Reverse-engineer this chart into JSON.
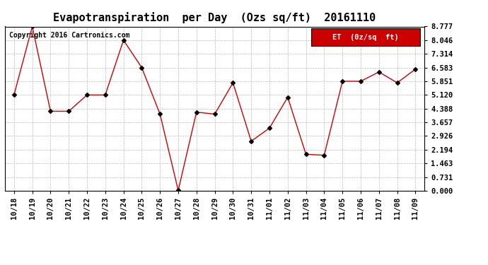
{
  "title": "Evapotranspiration  per Day  (Ozs sq/ft)  20161110",
  "copyright": "Copyright 2016 Cartronics.com",
  "legend_label": "ET  (0z/sq  ft)",
  "x_labels": [
    "10/18",
    "10/19",
    "10/20",
    "10/21",
    "10/22",
    "10/23",
    "10/24",
    "10/25",
    "10/26",
    "10/27",
    "10/28",
    "10/29",
    "10/30",
    "10/31",
    "11/01",
    "11/02",
    "11/03",
    "11/04",
    "11/05",
    "11/06",
    "11/07",
    "11/08",
    "11/09"
  ],
  "y_values": [
    5.12,
    8.777,
    4.25,
    4.25,
    5.12,
    5.12,
    8.046,
    6.583,
    4.1,
    0.02,
    4.2,
    4.1,
    5.77,
    2.65,
    3.35,
    5.0,
    1.95,
    1.9,
    5.851,
    5.851,
    6.35,
    5.77,
    6.5
  ],
  "y_ticks": [
    0.0,
    0.731,
    1.463,
    2.194,
    2.926,
    3.657,
    4.388,
    5.12,
    5.851,
    6.583,
    7.314,
    8.046,
    8.777
  ],
  "ylim": [
    0.0,
    8.777
  ],
  "line_color": "#CC0000",
  "marker_color": "#000000",
  "bg_color": "#FFFFFF",
  "grid_color": "#BBBBBB",
  "legend_bg": "#CC0000",
  "legend_text_color": "#FFFFFF",
  "title_fontsize": 11,
  "tick_fontsize": 7.5,
  "copyright_fontsize": 7
}
